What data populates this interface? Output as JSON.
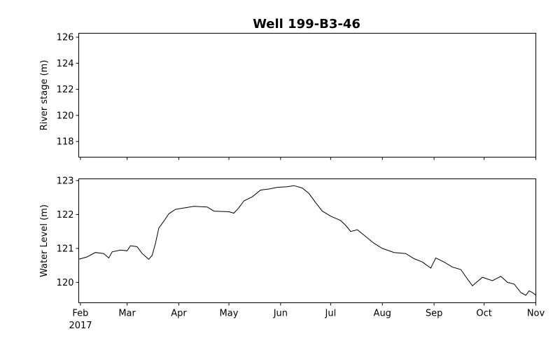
{
  "chart_data": [
    {
      "type": "line",
      "title": "Well 199-B3-46",
      "xlabel": "",
      "ylabel": "River stage (m)",
      "yticks": [
        118,
        120,
        122,
        124,
        126
      ],
      "ylim": [
        116.8,
        126.3
      ],
      "series": []
    },
    {
      "type": "line",
      "xlabel": "",
      "ylabel": "Water Level (m)",
      "yticks": [
        120,
        121,
        122,
        123
      ],
      "ylim": [
        119.4,
        123.05
      ],
      "x_tick_labels": [
        "Feb",
        "Mar",
        "Apr",
        "May",
        "Jun",
        "Jul",
        "Aug",
        "Sep",
        "Oct",
        "Nov"
      ],
      "x_tick_dates": [
        "2017-02-01",
        "2017-03-01",
        "2017-04-01",
        "2017-05-01",
        "2017-06-01",
        "2017-07-01",
        "2017-08-01",
        "2017-09-01",
        "2017-10-01",
        "2017-11-01"
      ],
      "xlim": [
        "2017-01-31",
        "2017-11-01"
      ],
      "year_label": "2017",
      "color": "#000000",
      "series": [
        {
          "x": [
            "2017-01-31",
            "2017-02-05",
            "2017-02-10",
            "2017-02-15",
            "2017-02-18",
            "2017-02-20",
            "2017-02-25",
            "2017-03-01",
            "2017-03-03",
            "2017-03-07",
            "2017-03-10",
            "2017-03-14",
            "2017-03-16",
            "2017-03-18",
            "2017-03-20",
            "2017-03-23",
            "2017-03-26",
            "2017-03-30",
            "2017-04-05",
            "2017-04-10",
            "2017-04-18",
            "2017-04-22",
            "2017-05-01",
            "2017-05-04",
            "2017-05-07",
            "2017-05-10",
            "2017-05-15",
            "2017-05-20",
            "2017-05-25",
            "2017-05-30",
            "2017-06-05",
            "2017-06-09",
            "2017-06-14",
            "2017-06-18",
            "2017-06-22",
            "2017-06-26",
            "2017-07-01",
            "2017-07-07",
            "2017-07-10",
            "2017-07-13",
            "2017-07-17",
            "2017-07-22",
            "2017-07-27",
            "2017-08-01",
            "2017-08-08",
            "2017-08-15",
            "2017-08-20",
            "2017-08-25",
            "2017-08-30",
            "2017-09-02",
            "2017-09-07",
            "2017-09-12",
            "2017-09-17",
            "2017-09-21",
            "2017-09-24",
            "2017-09-30",
            "2017-10-03",
            "2017-10-06",
            "2017-10-11",
            "2017-10-15",
            "2017-10-19",
            "2017-10-23",
            "2017-10-26",
            "2017-10-28",
            "2017-10-30",
            "2017-11-01"
          ],
          "y": [
            120.68,
            120.75,
            120.88,
            120.85,
            120.72,
            120.9,
            120.95,
            120.93,
            121.08,
            121.05,
            120.85,
            120.68,
            120.8,
            121.15,
            121.6,
            121.8,
            122.02,
            122.15,
            122.2,
            122.24,
            122.22,
            122.1,
            122.08,
            122.04,
            122.2,
            122.4,
            122.52,
            122.72,
            122.75,
            122.8,
            122.82,
            122.85,
            122.78,
            122.62,
            122.35,
            122.1,
            121.95,
            121.82,
            121.68,
            121.5,
            121.55,
            121.35,
            121.15,
            121.0,
            120.88,
            120.85,
            120.7,
            120.6,
            120.42,
            120.72,
            120.6,
            120.45,
            120.38,
            120.1,
            119.9,
            120.15,
            120.1,
            120.05,
            120.18,
            120.0,
            119.95,
            119.7,
            119.62,
            119.75,
            119.7,
            119.62
          ]
        }
      ]
    }
  ]
}
